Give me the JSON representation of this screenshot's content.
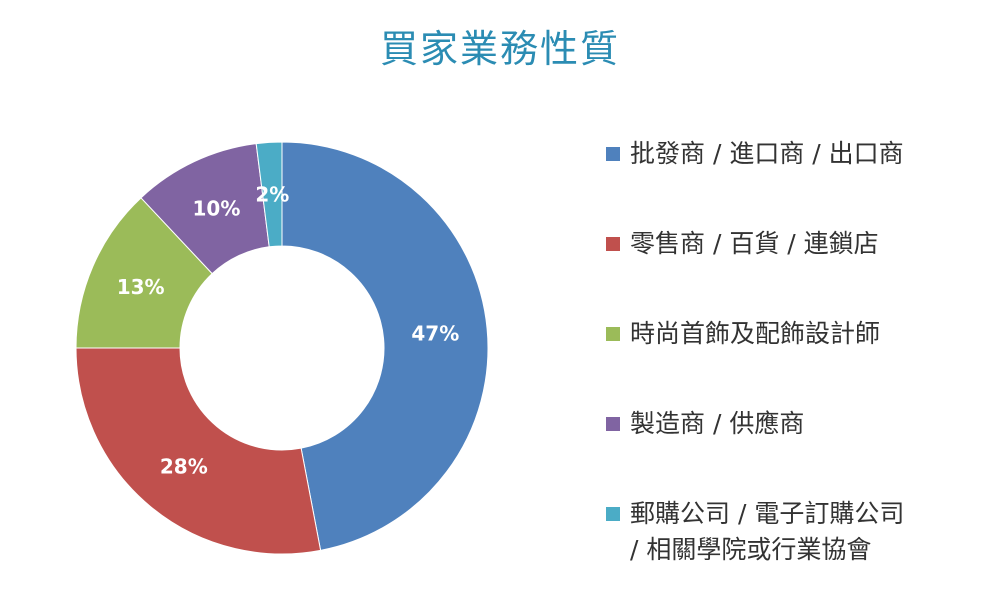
{
  "chart_data": {
    "type": "pie",
    "donut": true,
    "title": "買家業務性質",
    "legend_position": "right",
    "slices": [
      {
        "label": "批發商 / 進口商 / 出口商",
        "value": 47,
        "value_label": "47%",
        "color": "#4f81bd"
      },
      {
        "label": "零售商 / 百貨 / 連鎖店",
        "value": 28,
        "value_label": "28%",
        "color": "#c0504d"
      },
      {
        "label": "時尚首飾及配飾設計師",
        "value": 13,
        "value_label": "13%",
        "color": "#9bbb59"
      },
      {
        "label": "製造商 / 供應商",
        "value": 10,
        "value_label": "10%",
        "color": "#8064a2"
      },
      {
        "label": "郵購公司 / 電子訂購公司 / 相關學院或行業協會",
        "label_lines": [
          "郵購公司 / 電子訂購公司",
          "/ 相關學院或行業協會"
        ],
        "value": 2,
        "value_label": "2%",
        "color": "#4bacc6"
      }
    ]
  }
}
